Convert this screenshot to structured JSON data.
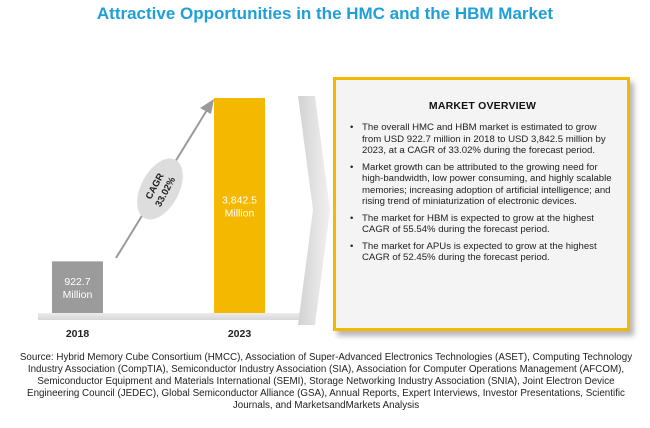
{
  "title": "Attractive Opportunities in the HMC and the HBM Market",
  "chart_data": {
    "type": "bar",
    "categories": [
      "2018",
      "2023"
    ],
    "values": [
      922.7,
      3842.5
    ],
    "value_labels": [
      "922.7",
      "3,842.5"
    ],
    "unit_label": "Million",
    "bar_colors": [
      "#9b9b9b",
      "#f5b800"
    ],
    "cagr_label": "CAGR",
    "cagr_value": "33.02%",
    "ylim": [
      0,
      3842.5
    ]
  },
  "overview": {
    "heading": "MARKET OVERVIEW",
    "bullets": [
      "The overall HMC and HBM market is estimated to grow from USD 922.7 million in 2018 to USD 3,842.5 million by 2023, at a CAGR of 33.02% during the forecast period.",
      "Market growth can be attributed to the growing need for high-bandwidth, low power consuming, and highly scalable memories; increasing adoption of artificial intelligence; and rising trend of miniaturization of electronic devices.",
      "The market for HBM is expected to grow at the highest CAGR of 55.54% during the forecast period.",
      "The market for APUs is expected to grow at the highest CAGR of 52.45% during the forecast period."
    ],
    "accent_color": "#f5b800"
  },
  "source": "Source: Hybrid Memory Cube Consortium (HMCC), Association of Super-Advanced Electronics Technologies (ASET), Computing Technology Industry Association (CompTIA), Semiconductor Industry Association (SIA), Association for Computer Operations Management (AFCOM), Semiconductor Equipment and Materials International (SEMI), Storage Networking Industry Association (SNIA), Joint Electron Device Engineering Council (JEDEC), Global Semiconductor Alliance (GSA), Annual Reports, Expert Interviews, Investor Presentations, Scientific Journals, and MarketsandMarkets Analysis"
}
